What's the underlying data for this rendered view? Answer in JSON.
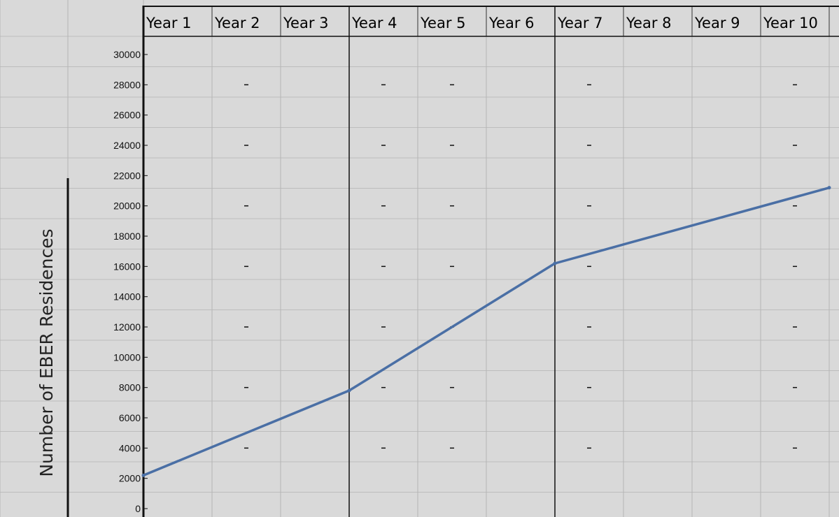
{
  "chart_data": {
    "type": "line",
    "title": "",
    "xlabel": "",
    "ylabel": "Number of EBER Residences",
    "categories": [
      "Year 1",
      "Year 2",
      "Year 3",
      "Year 4",
      "Year 5",
      "Year 6",
      "Year 7",
      "Year 8",
      "Year 9",
      "Year 10"
    ],
    "x": [
      0,
      3,
      6,
      10
    ],
    "series": [
      {
        "values": [
          2200,
          7800,
          16200,
          21200
        ],
        "color": "#4a6fa5"
      }
    ],
    "yticks": [
      0,
      2000,
      4000,
      6000,
      8000,
      10000,
      12000,
      14000,
      16000,
      18000,
      20000,
      22000,
      24000,
      26000,
      28000,
      30000
    ],
    "ylim": [
      0,
      30000
    ],
    "grid": true,
    "legend": "none"
  }
}
